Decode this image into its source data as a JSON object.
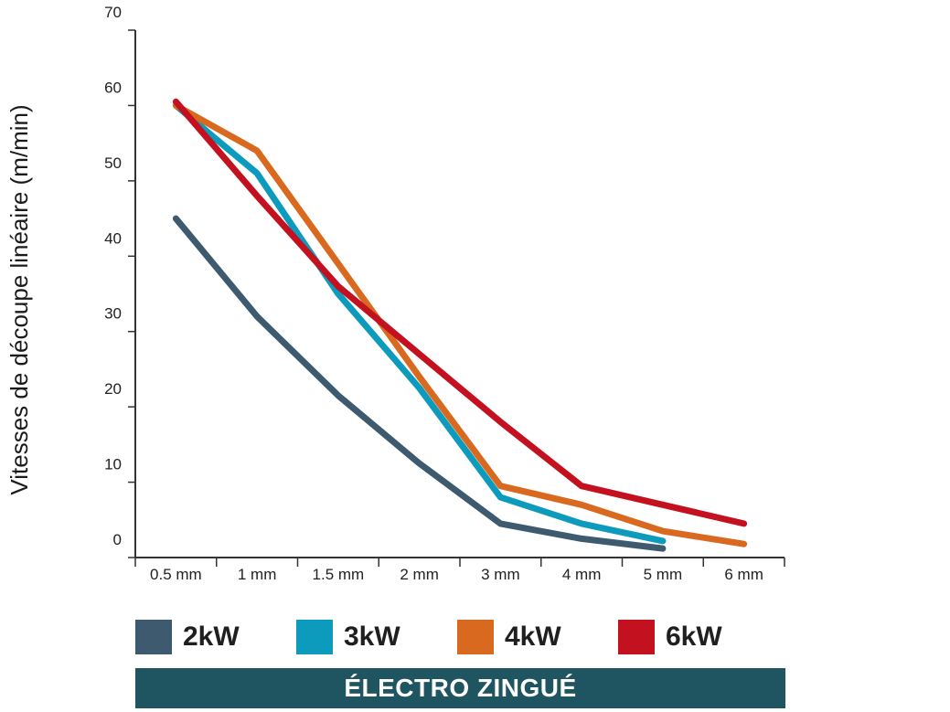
{
  "chart_data": {
    "type": "line",
    "categories": [
      "0.5 mm",
      "1 mm",
      "1.5 mm",
      "2 mm",
      "3 mm",
      "4 mm",
      "5 mm",
      "6 mm"
    ],
    "ylabel": "Vitesses de découpe linéaire (m/min)",
    "xlabel": "",
    "ylim": [
      0,
      70
    ],
    "yticks": [
      "0",
      "10",
      "20",
      "30",
      "40",
      "50",
      "60",
      "70"
    ],
    "grid": false,
    "legend_position": "bottom",
    "series": [
      {
        "name": "2kW",
        "color": "#3d5a6e",
        "values": [
          45,
          32,
          21.5,
          12.5,
          4.5,
          2.5,
          1.2,
          null
        ]
      },
      {
        "name": "3kW",
        "color": "#0d9bbd",
        "values": [
          60,
          51,
          35,
          22.5,
          8,
          4.5,
          2.2,
          null
        ]
      },
      {
        "name": "4kW",
        "color": "#d9691e",
        "values": [
          60,
          54,
          39,
          24,
          9.5,
          7,
          3.5,
          1.8
        ]
      },
      {
        "name": "6kW",
        "color": "#c4111f",
        "values": [
          60.5,
          48,
          36,
          27,
          18,
          9.5,
          7,
          4.5
        ]
      }
    ]
  },
  "legend": {
    "items": [
      {
        "label": "2kW",
        "color": "#3d5a6e"
      },
      {
        "label": "3kW",
        "color": "#0d9bbd"
      },
      {
        "label": "4kW",
        "color": "#d9691e"
      },
      {
        "label": "6kW",
        "color": "#c4111f"
      }
    ]
  },
  "banner": {
    "text": "ÉLECTRO ZINGUÉ",
    "color": "#1f5560"
  }
}
